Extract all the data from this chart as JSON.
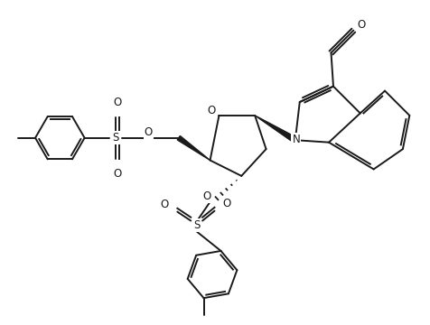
{
  "bg_color": "#ffffff",
  "line_color": "#1a1a1a",
  "line_width": 1.4,
  "dbo": 0.055,
  "figsize": [
    4.77,
    3.6
  ],
  "dpi": 100,
  "xlim": [
    0,
    9.54
  ],
  "ylim": [
    0,
    7.2
  ]
}
